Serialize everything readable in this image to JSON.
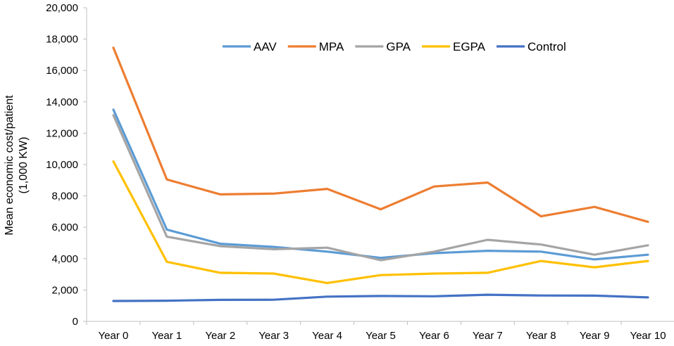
{
  "chart_data": {
    "type": "line",
    "title": "",
    "xlabel": "",
    "ylabel_lines": [
      "Mean economic cost/patient",
      "(1,000 KW)"
    ],
    "categories": [
      "Year 0",
      "Year 1",
      "Year 2",
      "Year 3",
      "Year 4",
      "Year 5",
      "Year 6",
      "Year 7",
      "Year 8",
      "Year 9",
      "Year 10"
    ],
    "ylim": [
      0,
      20000
    ],
    "yticks": [
      0,
      2000,
      4000,
      6000,
      8000,
      10000,
      12000,
      14000,
      16000,
      18000,
      20000
    ],
    "ytick_labels": [
      "0",
      "2,000",
      "4,000",
      "6,000",
      "8,000",
      "10,000",
      "12,000",
      "14,000",
      "16,000",
      "18,000",
      "20,000"
    ],
    "grid": false,
    "legend_position": "top-right",
    "series": [
      {
        "name": "AAV",
        "color": "#5B9BD5",
        "values": [
          13500,
          5850,
          4950,
          4750,
          4450,
          4050,
          4350,
          4500,
          4450,
          3950,
          4250
        ]
      },
      {
        "name": "MPA",
        "color": "#ED7D31",
        "values": [
          17450,
          9050,
          8100,
          8150,
          8450,
          7150,
          8600,
          8850,
          6700,
          7300,
          6350
        ]
      },
      {
        "name": "GPA",
        "color": "#A5A5A5",
        "values": [
          13150,
          5400,
          4800,
          4600,
          4700,
          3900,
          4450,
          5200,
          4900,
          4250,
          4850
        ]
      },
      {
        "name": "EGPA",
        "color": "#FFC000",
        "values": [
          10200,
          3800,
          3100,
          3050,
          2450,
          2950,
          3050,
          3100,
          3850,
          3450,
          3850
        ]
      },
      {
        "name": "Control",
        "color": "#4472C4",
        "values": [
          1300,
          1320,
          1370,
          1380,
          1580,
          1620,
          1600,
          1700,
          1650,
          1640,
          1530
        ]
      }
    ]
  }
}
